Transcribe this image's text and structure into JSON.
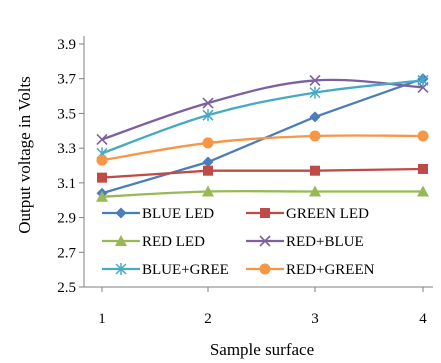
{
  "chart_data": {
    "type": "line",
    "title": "",
    "xlabel": "Sample surface",
    "ylabel": "Output voltage in Volts",
    "x": [
      1,
      2,
      3,
      4
    ],
    "xlim": [
      1,
      4
    ],
    "ylim": [
      2.5,
      3.9
    ],
    "yticks": [
      "2.5",
      "2.7",
      "2.9",
      "3.1",
      "3.3",
      "3.5",
      "3.7",
      "3.9"
    ],
    "xticks": [
      "1",
      "2",
      "3",
      "4"
    ],
    "grid": false,
    "legend_position": "inside-bottom",
    "series": [
      {
        "name": "BLUE LED",
        "values": [
          3.04,
          3.22,
          3.48,
          3.7
        ],
        "color": "#4a7ebb",
        "marker": "diamond",
        "smooth": false
      },
      {
        "name": "GREEN LED",
        "values": [
          3.13,
          3.17,
          3.17,
          3.18
        ],
        "color": "#be4b48",
        "marker": "square",
        "smooth": false
      },
      {
        "name": "RED LED",
        "values": [
          3.02,
          3.05,
          3.05,
          3.05
        ],
        "color": "#98b954",
        "marker": "triangle",
        "smooth": true
      },
      {
        "name": "RED+BLUE",
        "values": [
          3.35,
          3.56,
          3.69,
          3.65
        ],
        "color": "#7d60a0",
        "marker": "x",
        "smooth": true
      },
      {
        "name": "BLUE+GREE",
        "values": [
          3.27,
          3.49,
          3.62,
          3.69
        ],
        "color": "#46aac5",
        "marker": "asterisk",
        "smooth": true
      },
      {
        "name": "RED+GREEN",
        "values": [
          3.23,
          3.33,
          3.37,
          3.37
        ],
        "color": "#f79646",
        "marker": "circle",
        "smooth": true
      }
    ]
  }
}
